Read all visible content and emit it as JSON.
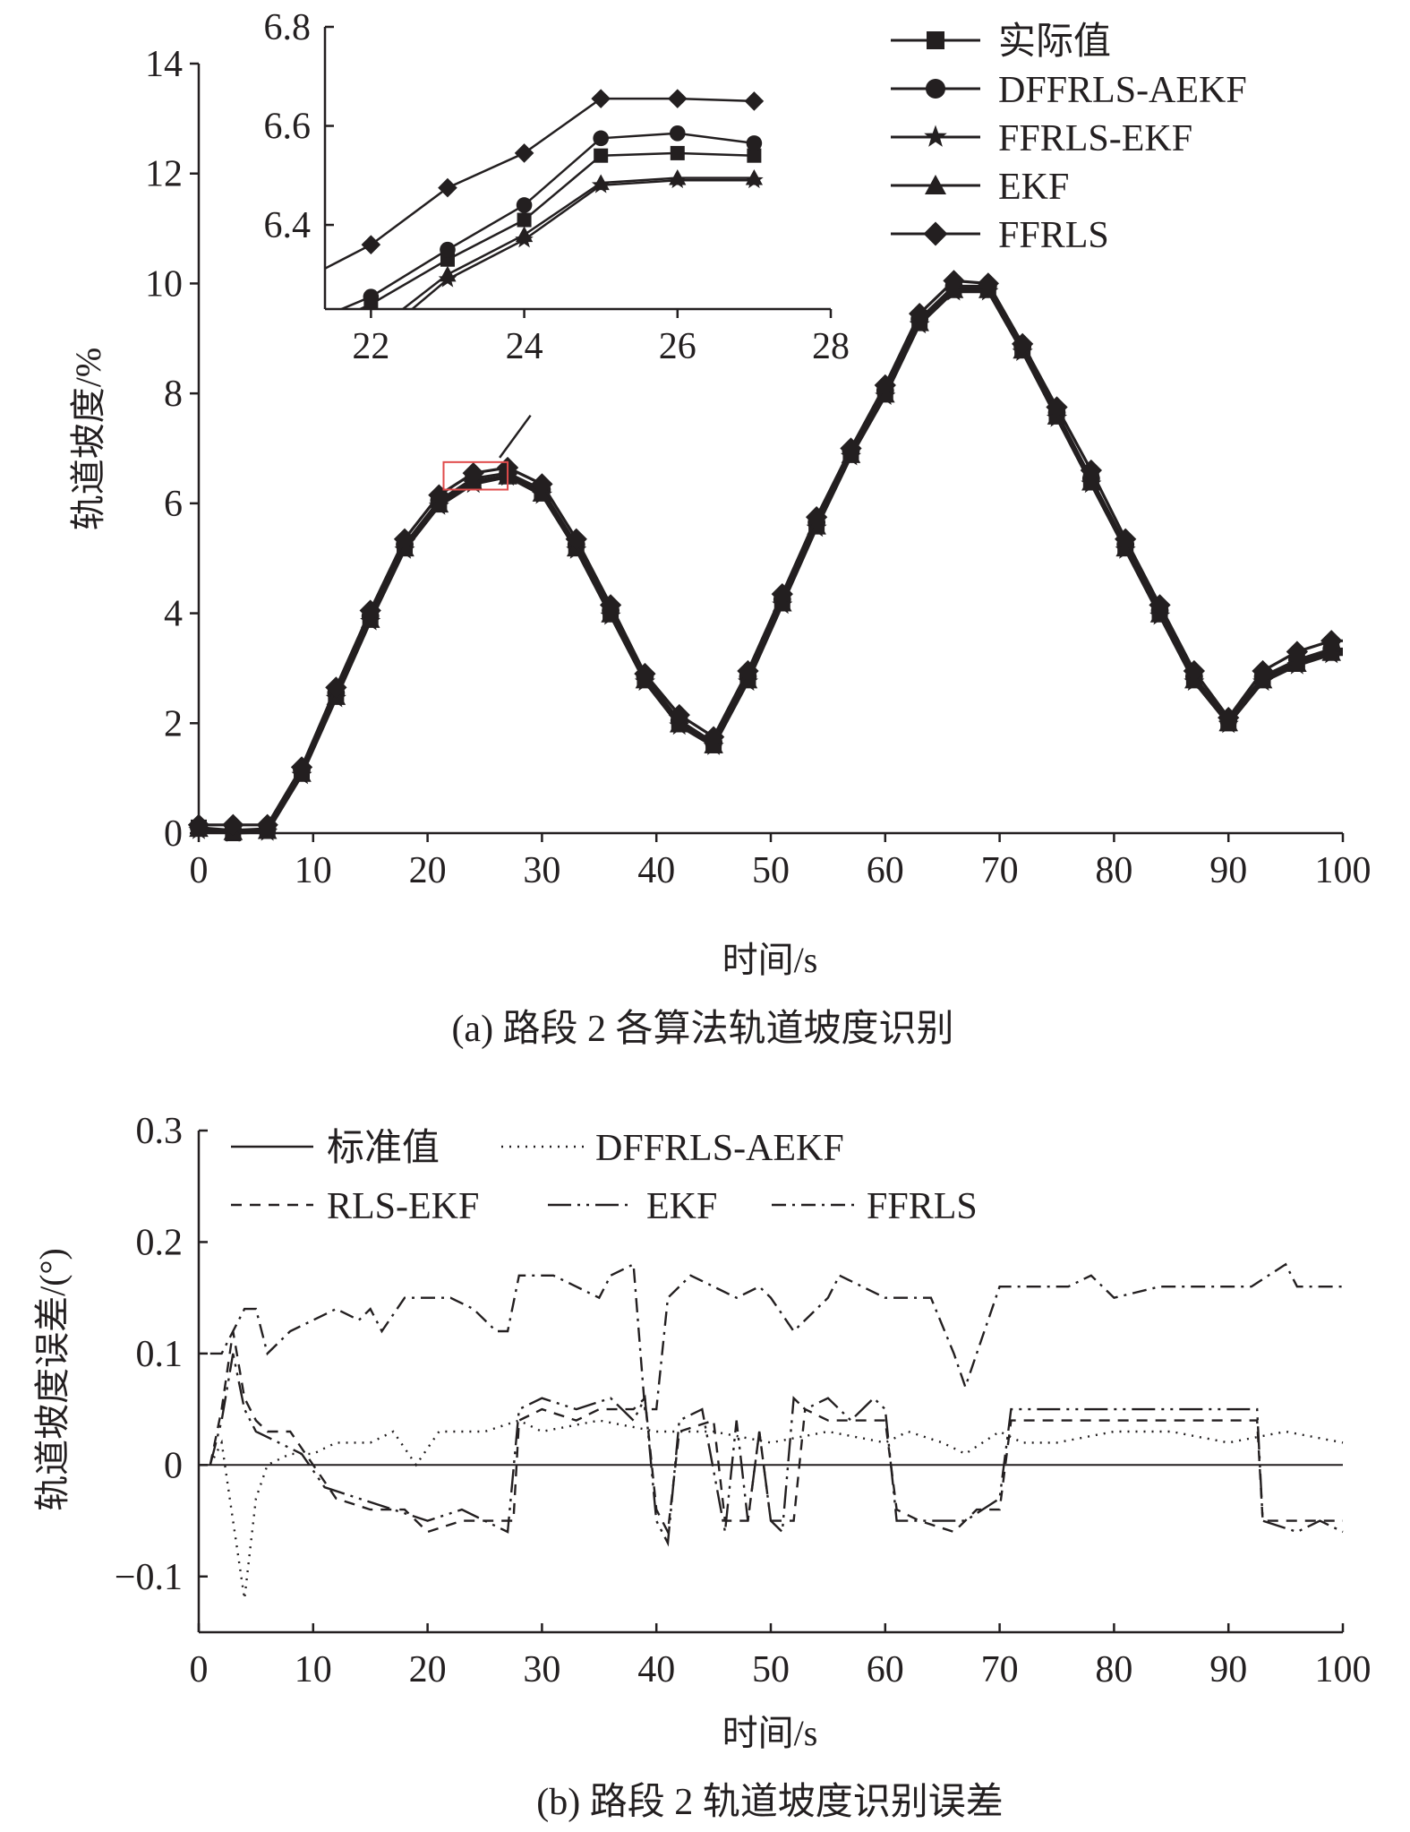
{
  "colors": {
    "ink": "#231f20",
    "zoom_box": "#e04b4b",
    "background": "#ffffff"
  },
  "chart_data": [
    {
      "type": "line",
      "xlabel": "时间/s",
      "ylabel": "轨道坡度/%",
      "caption": "(a) 路段 2 各算法轨道坡度识别",
      "xlim": [
        0,
        100
      ],
      "ylim": [
        0,
        14
      ],
      "xticks": [
        "0",
        "10",
        "20",
        "30",
        "40",
        "50",
        "60",
        "70",
        "80",
        "90",
        "100"
      ],
      "yticks": [
        "0",
        "2",
        "4",
        "6",
        "8",
        "10",
        "12",
        "14"
      ],
      "legend_position": "top-right",
      "x": [
        0,
        3,
        6,
        9,
        12,
        15,
        18,
        21,
        24,
        27,
        30,
        33,
        36,
        39,
        42,
        45,
        48,
        51,
        54,
        57,
        60,
        63,
        66,
        69,
        72,
        75,
        78,
        81,
        84,
        87,
        90,
        93,
        96,
        99,
        100
      ],
      "series": [
        {
          "name": "实际值",
          "marker": "square",
          "values": [
            0.1,
            0.0,
            0.05,
            1.1,
            2.5,
            3.9,
            5.2,
            6.0,
            6.4,
            6.5,
            6.2,
            5.2,
            4.0,
            2.8,
            2.0,
            1.6,
            2.8,
            4.2,
            5.6,
            6.9,
            8.0,
            9.3,
            9.9,
            9.9,
            8.8,
            7.6,
            6.4,
            5.2,
            4.0,
            2.8,
            2.0,
            2.8,
            3.1,
            3.3,
            3.3
          ]
        },
        {
          "name": "DFFRLS-AEKF",
          "marker": "circle",
          "values": [
            0.1,
            0.05,
            0.08,
            1.15,
            2.55,
            3.95,
            5.25,
            6.05,
            6.45,
            6.55,
            6.25,
            5.25,
            4.05,
            2.85,
            2.05,
            1.65,
            2.85,
            4.25,
            5.65,
            6.95,
            8.05,
            9.35,
            9.95,
            9.95,
            8.85,
            7.65,
            6.45,
            5.25,
            4.05,
            2.85,
            2.05,
            2.85,
            3.15,
            3.35,
            3.35
          ]
        },
        {
          "name": "FFRLS-EKF",
          "marker": "star",
          "values": [
            0.05,
            0.0,
            0.02,
            1.05,
            2.45,
            3.85,
            5.15,
            5.95,
            6.35,
            6.48,
            6.15,
            5.15,
            3.95,
            2.75,
            1.95,
            1.58,
            2.75,
            4.15,
            5.55,
            6.85,
            7.95,
            9.25,
            9.85,
            9.85,
            8.75,
            7.55,
            6.35,
            5.15,
            3.95,
            2.75,
            1.98,
            2.75,
            3.05,
            3.25,
            3.25
          ]
        },
        {
          "name": "EKF",
          "marker": "triangle",
          "values": [
            0.08,
            0.02,
            0.04,
            1.08,
            2.48,
            3.88,
            5.18,
            5.98,
            6.38,
            6.49,
            6.18,
            5.18,
            3.98,
            2.78,
            1.98,
            1.6,
            2.78,
            4.18,
            5.58,
            6.88,
            7.98,
            9.28,
            9.88,
            9.88,
            8.78,
            7.58,
            6.38,
            5.18,
            3.98,
            2.78,
            2.0,
            2.78,
            3.08,
            3.28,
            3.28
          ]
        },
        {
          "name": "FFRLS",
          "marker": "diamond",
          "values": [
            0.15,
            0.15,
            0.15,
            1.2,
            2.65,
            4.05,
            5.35,
            6.15,
            6.55,
            6.65,
            6.35,
            5.35,
            4.15,
            2.9,
            2.15,
            1.75,
            2.95,
            4.35,
            5.75,
            7.0,
            8.15,
            9.45,
            10.05,
            10.0,
            8.9,
            7.75,
            6.6,
            5.35,
            4.15,
            2.95,
            2.1,
            2.95,
            3.3,
            3.5,
            3.5
          ]
        }
      ],
      "inset": {
        "xlim": [
          21.4,
          28
        ],
        "ylim": [
          6.23,
          6.8
        ],
        "xticks": [
          "22",
          "24",
          "26",
          "28"
        ],
        "yticks": [
          "6.4",
          "6.6",
          "6.8"
        ],
        "x": [
          21,
          22,
          23,
          24,
          25,
          26,
          27
        ],
        "series": [
          {
            "name": "实际值",
            "values": [
              6.17,
              6.24,
              6.33,
              6.41,
              6.54,
              6.545,
              6.54
            ]
          },
          {
            "name": "DFFRLS-AEKF",
            "values": [
              6.19,
              6.255,
              6.35,
              6.44,
              6.575,
              6.585,
              6.565
            ]
          },
          {
            "name": "FFRLS-EKF",
            "values": [
              6.09,
              6.16,
              6.29,
              6.37,
              6.48,
              6.49,
              6.49
            ]
          },
          {
            "name": "EKF",
            "values": [
              6.11,
              6.18,
              6.3,
              6.38,
              6.485,
              6.495,
              6.495
            ]
          },
          {
            "name": "FFRLS",
            "values": [
              6.28,
              6.36,
              6.475,
              6.545,
              6.655,
              6.655,
              6.65
            ]
          }
        ]
      }
    },
    {
      "type": "line",
      "xlabel": "时间/s",
      "ylabel": "轨道坡度误差/(°)",
      "caption": "(b) 路段 2 轨道坡度识别误差",
      "xlim": [
        0,
        100
      ],
      "ylim": [
        -0.15,
        0.3
      ],
      "xticks": [
        "0",
        "10",
        "20",
        "30",
        "40",
        "50",
        "60",
        "70",
        "80",
        "90",
        "100"
      ],
      "yticks": [
        "−0.1",
        "0",
        "0.1",
        "0.2",
        "0.3"
      ],
      "legend_position": "top",
      "series": [
        {
          "name": "标准值",
          "dash": "solid",
          "x": [
            0,
            100
          ],
          "values": [
            0,
            0
          ]
        },
        {
          "name": "DFFRLS-AEKF",
          "dash": "dotted",
          "x": [
            1,
            2,
            3,
            4,
            5,
            6,
            8,
            10,
            12,
            15,
            17,
            19,
            21,
            25,
            28,
            30,
            35,
            40,
            45,
            50,
            55,
            60,
            62,
            65,
            67,
            70,
            72,
            75,
            80,
            85,
            90,
            95,
            100
          ],
          "values": [
            0.0,
            0.02,
            -0.05,
            -0.12,
            -0.03,
            0.0,
            0.01,
            0.01,
            0.02,
            0.02,
            0.03,
            0.0,
            0.03,
            0.03,
            0.04,
            0.03,
            0.04,
            0.03,
            0.03,
            0.02,
            0.03,
            0.02,
            0.03,
            0.02,
            0.01,
            0.03,
            0.02,
            0.02,
            0.03,
            0.03,
            0.02,
            0.03,
            0.02
          ]
        },
        {
          "name": "RLS-EKF",
          "dash": "dashed",
          "x": [
            1,
            2,
            3,
            4,
            5,
            6,
            8,
            10,
            12,
            15,
            18,
            20,
            23,
            25,
            27.5,
            28,
            30,
            33,
            35,
            38,
            39,
            40,
            41,
            42,
            45,
            46,
            48,
            49,
            50,
            52,
            53,
            55,
            58,
            60,
            61,
            63,
            66,
            68,
            70,
            71,
            72,
            75,
            78,
            80,
            85,
            90,
            92.5,
            93,
            95,
            98,
            100
          ],
          "values": [
            0.0,
            0.05,
            0.12,
            0.06,
            0.04,
            0.03,
            0.03,
            0.0,
            -0.03,
            -0.04,
            -0.04,
            -0.06,
            -0.05,
            -0.05,
            -0.05,
            0.04,
            0.05,
            0.04,
            0.05,
            0.05,
            0.06,
            -0.04,
            -0.06,
            0.03,
            0.04,
            -0.05,
            -0.05,
            0.03,
            -0.05,
            -0.05,
            0.05,
            0.04,
            0.04,
            0.04,
            -0.04,
            -0.05,
            -0.06,
            -0.04,
            -0.04,
            0.04,
            0.04,
            0.04,
            0.04,
            0.04,
            0.04,
            0.04,
            0.04,
            -0.05,
            -0.05,
            -0.05,
            -0.05
          ]
        },
        {
          "name": "EKF",
          "dash": "long-dash-dot-dot",
          "x": [
            1,
            2,
            3,
            4,
            5,
            7,
            9,
            11,
            14,
            17,
            20,
            23,
            25,
            27,
            28,
            30,
            33,
            36,
            38,
            39,
            40,
            41,
            42,
            44,
            46,
            47,
            48,
            49,
            50,
            51,
            52,
            53,
            55,
            57,
            59,
            60,
            61,
            63,
            65,
            67,
            70,
            71,
            73,
            76,
            79,
            82,
            85,
            88,
            91,
            92.5,
            93,
            96,
            98,
            100
          ],
          "values": [
            0.0,
            0.04,
            0.1,
            0.05,
            0.03,
            0.02,
            0.01,
            -0.02,
            -0.03,
            -0.04,
            -0.05,
            -0.04,
            -0.05,
            -0.06,
            0.05,
            0.06,
            0.05,
            0.06,
            0.04,
            0.06,
            -0.05,
            -0.07,
            0.04,
            0.05,
            -0.06,
            0.04,
            -0.05,
            0.03,
            -0.05,
            -0.06,
            0.06,
            0.05,
            0.06,
            0.04,
            0.06,
            0.05,
            -0.05,
            -0.05,
            -0.05,
            -0.05,
            -0.03,
            0.05,
            0.05,
            0.05,
            0.05,
            0.05,
            0.05,
            0.05,
            0.05,
            0.05,
            -0.05,
            -0.06,
            -0.05,
            -0.06
          ]
        },
        {
          "name": "FFRLS",
          "dash": "dash-dot",
          "x": [
            1,
            2,
            3,
            4,
            5,
            6,
            8,
            10,
            12,
            14,
            15,
            16,
            18,
            20,
            22,
            24,
            26,
            27,
            28,
            29,
            31,
            33,
            35,
            36,
            38,
            39,
            40,
            41,
            43,
            45,
            47,
            49,
            50,
            52,
            53,
            55,
            56,
            58,
            60,
            62,
            64,
            66,
            67,
            68,
            70,
            71,
            73,
            76,
            78,
            80,
            84,
            88,
            92,
            95,
            96,
            98,
            100
          ],
          "values": [
            0.1,
            0.1,
            0.12,
            0.14,
            0.14,
            0.1,
            0.12,
            0.13,
            0.14,
            0.13,
            0.14,
            0.12,
            0.15,
            0.15,
            0.15,
            0.14,
            0.12,
            0.12,
            0.17,
            0.17,
            0.17,
            0.16,
            0.15,
            0.17,
            0.18,
            0.05,
            0.05,
            0.15,
            0.17,
            0.16,
            0.15,
            0.16,
            0.15,
            0.12,
            0.13,
            0.15,
            0.17,
            0.16,
            0.15,
            0.15,
            0.15,
            0.1,
            0.07,
            0.1,
            0.16,
            0.16,
            0.16,
            0.16,
            0.17,
            0.15,
            0.16,
            0.16,
            0.16,
            0.18,
            0.16,
            0.16,
            0.16
          ]
        }
      ]
    }
  ]
}
